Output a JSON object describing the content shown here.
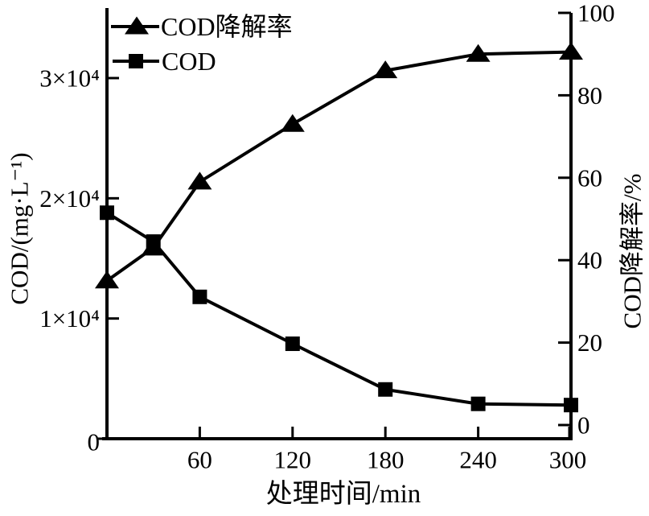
{
  "figure": {
    "background": "#ffffff",
    "ink_color": "#000000"
  },
  "chart_data": {
    "type": "line",
    "title": "",
    "xlabel": "处理时间/min",
    "xlim": [
      0,
      300
    ],
    "x_tick_values": [
      60,
      120,
      180,
      240,
      300
    ],
    "x_tick_labels": [
      "60",
      "120",
      "180",
      "240",
      "300"
    ],
    "grid": false,
    "legend": {
      "position": "top-left",
      "entries": [
        "COD降解率",
        "COD"
      ]
    },
    "y_left": {
      "label": "COD/(mg·L⁻¹)",
      "tick_values": [
        0,
        10000,
        20000,
        30000
      ],
      "tick_labels": [
        "0",
        "1×10⁴",
        "2×10⁴",
        "3×10⁴"
      ],
      "lim": [
        0,
        35700
      ]
    },
    "y_right": {
      "label": "COD降解率/%",
      "tick_values": [
        0,
        20,
        40,
        60,
        80,
        100
      ],
      "tick_labels": [
        "0",
        "20",
        "40",
        "60",
        "80",
        "100"
      ],
      "lim": [
        0,
        100
      ]
    },
    "x": [
      0,
      30,
      60,
      120,
      180,
      240,
      300
    ],
    "series": [
      {
        "name": "COD降解率",
        "axis": "right",
        "marker": "triangle",
        "values": [
          35,
          43,
          59,
          73,
          86,
          90,
          90.5
        ]
      },
      {
        "name": "COD",
        "axis": "left",
        "marker": "square",
        "values": [
          18800,
          16400,
          11800,
          7900,
          4100,
          2900,
          2800
        ]
      }
    ]
  }
}
